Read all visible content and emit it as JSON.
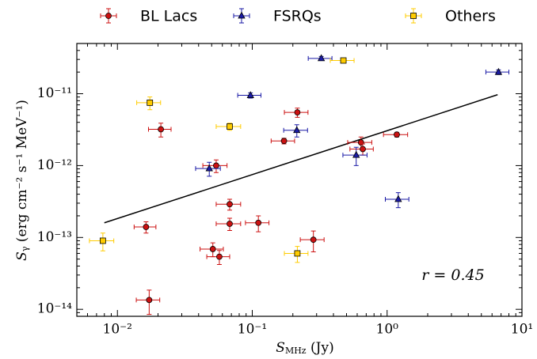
{
  "chart_data": {
    "type": "scatter",
    "xlabel": {
      "symbol": "S",
      "subscript": "MHz",
      "units": " (Jy)"
    },
    "ylabel": {
      "symbol": "S",
      "subscript": "γ",
      "units": " (erg cm⁻² s⁻¹ MeV⁻¹)"
    },
    "xscale": "log",
    "yscale": "log",
    "xlim": [
      0.005,
      10
    ],
    "ylim": [
      8e-15,
      5e-11
    ],
    "xticks": [
      {
        "value": 0.01,
        "label": "10⁻²"
      },
      {
        "value": 0.1,
        "label": "10⁻¹"
      },
      {
        "value": 1,
        "label": "10⁰"
      },
      {
        "value": 10,
        "label": "10¹"
      }
    ],
    "yticks": [
      {
        "value": 1e-14,
        "label": "10⁻¹⁴"
      },
      {
        "value": 1e-13,
        "label": "10⁻¹³"
      },
      {
        "value": 1e-12,
        "label": "10⁻¹²"
      },
      {
        "value": 1e-11,
        "label": "10⁻¹¹"
      }
    ],
    "legend": "top",
    "series": [
      {
        "name": "BL Lacs",
        "color": "#cc1111",
        "marker": "circle",
        "x": [
          0.021,
          0.216,
          0.172,
          0.64,
          0.66,
          1.18,
          0.054,
          0.068,
          0.068,
          0.111,
          0.0163,
          0.051,
          0.057,
          0.284,
          0.0172
        ],
        "y": [
          3.2e-12,
          5.5e-12,
          2.2e-12,
          2.1e-12,
          1.7e-12,
          2.7e-12,
          1e-12,
          2.9e-13,
          1.55e-13,
          1.6e-13,
          1.4e-13,
          6.9e-14,
          5.4e-14,
          9.3e-14,
          1.35e-14
        ],
        "xerr": [
          0.004,
          0.043,
          0.034,
          0.13,
          0.13,
          0.24,
          0.011,
          0.014,
          0.014,
          0.022,
          0.003,
          0.01,
          0.011,
          0.057,
          0.0034
        ],
        "yerr": [
          7e-13,
          8e-13,
          2e-13,
          4e-13,
          3e-13,
          2e-13,
          2e-13,
          5e-14,
          3e-14,
          4e-14,
          2.5e-14,
          1.5e-14,
          1.2e-14,
          3e-14,
          5e-15
        ]
      },
      {
        "name": "FSRQs",
        "color": "#1a1aa6",
        "marker": "triangle",
        "x": [
          0.325,
          0.097,
          0.214,
          0.59,
          0.048,
          1.21,
          6.7
        ],
        "y": [
          3.1e-11,
          9.5e-12,
          3.1e-12,
          1.4e-12,
          9.1e-13,
          3.4e-13,
          2e-11
        ],
        "xerr": [
          0.065,
          0.019,
          0.043,
          0.12,
          0.01,
          0.24,
          1.3
        ],
        "yerr": [
          2e-12,
          8e-13,
          6e-13,
          4e-13,
          2e-13,
          8e-14,
          1.5e-12
        ]
      },
      {
        "name": "Others",
        "color": "#ffcc00",
        "marker": "square",
        "x": [
          0.0174,
          0.068,
          0.474,
          0.0078,
          0.216
        ],
        "y": [
          7.5e-12,
          3.5e-12,
          2.9e-11,
          9e-14,
          6e-14
        ],
        "xerr": [
          0.0035,
          0.014,
          0.095,
          0.0016,
          0.043
        ],
        "yerr": [
          1.5e-12,
          4e-13,
          2e-12,
          2.5e-14,
          1.5e-14
        ]
      }
    ],
    "fit_line": {
      "x": [
        0.008,
        6.6
      ],
      "y": [
        1.6e-13,
        9.7e-12
      ],
      "color": "#000000"
    },
    "annotation": "r = 0.45"
  }
}
